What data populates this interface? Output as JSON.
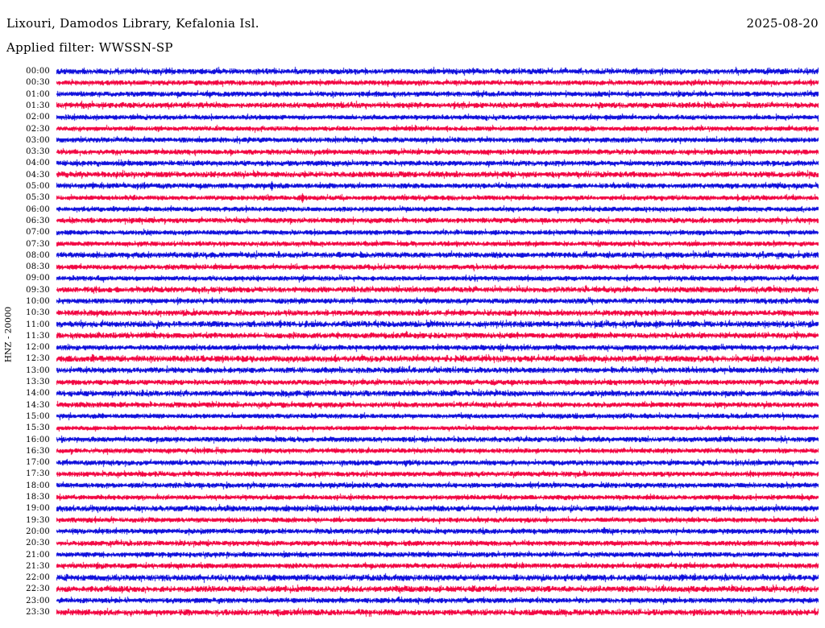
{
  "header": {
    "station_title": "Lixouri, Damodos Library, Kefalonia Isl.",
    "date": "2025-08-20",
    "filter_label": "Applied filter: WWSSN-SP"
  },
  "axis": {
    "channel_label": "HNZ - 20000"
  },
  "chart_data": {
    "type": "helicorder-seismogram",
    "title": "Lixouri, Damodos Library, Kefalonia Isl.",
    "date": "2025-08-20",
    "applied_filter": "WWSSN-SP",
    "channel": "HNZ",
    "scale": "20000",
    "rows": 48,
    "minutes_per_row": 30,
    "row_labels": [
      "00:00",
      "00:30",
      "01:00",
      "01:30",
      "02:00",
      "02:30",
      "03:00",
      "03:30",
      "04:00",
      "04:30",
      "05:00",
      "05:30",
      "06:00",
      "06:30",
      "07:00",
      "07:30",
      "08:00",
      "08:30",
      "09:00",
      "09:30",
      "10:00",
      "10:30",
      "11:00",
      "11:30",
      "12:00",
      "12:30",
      "13:00",
      "13:30",
      "14:00",
      "14:30",
      "15:00",
      "15:30",
      "16:00",
      "16:30",
      "17:00",
      "17:30",
      "18:00",
      "18:30",
      "19:00",
      "19:30",
      "20:00",
      "20:30",
      "21:00",
      "21:30",
      "22:00",
      "22:30",
      "23:00",
      "23:30"
    ],
    "trace_color_even_rows": "#0F0FDC",
    "trace_color_odd_rows": "#F20642",
    "noise_levels": [
      2.2,
      1.8,
      1.8,
      2.2,
      1.4,
      1.5,
      1.8,
      1.9,
      1.8,
      2.3,
      1.9,
      1.5,
      1.5,
      1.8,
      1.5,
      1.5,
      2.2,
      1.8,
      1.5,
      2.2,
      1.9,
      2.2,
      2.6,
      2.2,
      1.9,
      2.6,
      2.2,
      1.9,
      2.2,
      1.9,
      1.5,
      1.3,
      1.8,
      1.5,
      1.8,
      1.8,
      1.8,
      1.5,
      2.2,
      1.5,
      1.8,
      1.8,
      1.8,
      1.8,
      2.6,
      2.5,
      1.9,
      2.5
    ],
    "events": [
      {
        "row_label": "05:00",
        "x_fraction": 0.282
      },
      {
        "row_label": "05:30",
        "x_fraction": 0.322
      }
    ],
    "description": "48 half-hour traces of low-amplitude background noise, alternating blue (on-the-hour rows) and red (half-hour rows); small spike events near 05:00 and 05:30."
  }
}
